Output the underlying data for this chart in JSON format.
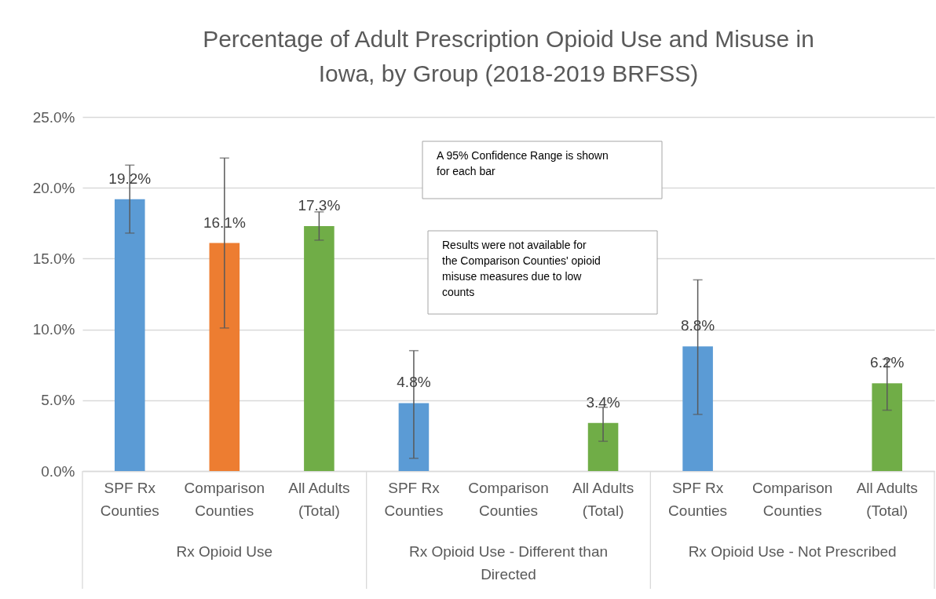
{
  "chart_data": {
    "type": "bar",
    "title": "Percentage of Adult Prescription Opioid Use and Misuse in Iowa, by Group (2018-2019 BRFSS)",
    "categories": [
      "SPF Rx Counties",
      "Comparison Counties",
      "All Adults (Total)",
      "SPF Rx Counties",
      "Comparison Counties",
      "All Adults (Total)",
      "SPF Rx Counties",
      "Comparison Counties",
      "All Adults (Total)"
    ],
    "values": [
      19.2,
      16.1,
      17.3,
      4.8,
      null,
      3.4,
      8.8,
      null,
      6.2
    ],
    "colors": [
      "#5b9bd5",
      "#ed7d31",
      "#70ad47",
      "#5b9bd5",
      "#ed7d31",
      "#70ad47",
      "#5b9bd5",
      "#ed7d31",
      "#70ad47"
    ],
    "errors": [
      [
        16.8,
        21.6
      ],
      [
        10.1,
        22.1
      ],
      [
        16.3,
        18.3
      ],
      [
        0.9,
        8.5
      ],
      null,
      [
        2.1,
        4.5
      ],
      [
        4.0,
        13.5
      ],
      null,
      [
        4.3,
        7.9
      ]
    ],
    "value_labels": [
      "19.2%",
      "16.1%",
      "17.3%",
      "4.8%",
      null,
      "3.4%",
      "8.8%",
      null,
      "6.2%"
    ],
    "ylim": [
      0,
      25
    ],
    "yticks": [
      {
        "value": 0,
        "label": "0.0%"
      },
      {
        "value": 5,
        "label": "5.0%"
      },
      {
        "value": 10,
        "label": "10.0%"
      },
      {
        "value": 15,
        "label": "15.0%"
      },
      {
        "value": 20,
        "label": "20.0%"
      },
      {
        "value": 25,
        "label": "25.0%"
      }
    ],
    "grid": "y",
    "annotations": [
      "A 95% Confidence Range is shown for each bar",
      "Results were not available for the Comparison Counties' opioid misuse measures due to low counts",
      "Rx Opioid Use",
      "Rx Opioid Use - Different than Directed",
      "Rx Opioid Use - Not Prescribed"
    ]
  }
}
